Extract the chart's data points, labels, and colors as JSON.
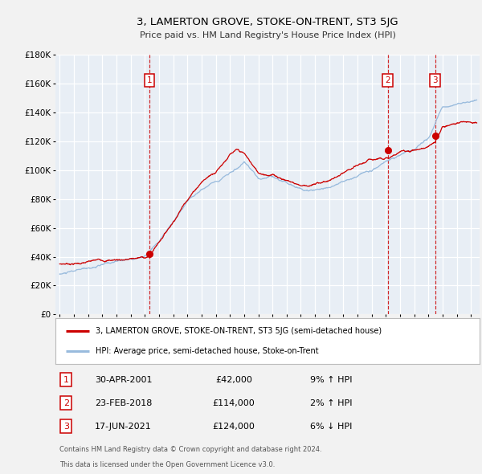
{
  "title": "3, LAMERTON GROVE, STOKE-ON-TRENT, ST3 5JG",
  "subtitle": "Price paid vs. HM Land Registry's House Price Index (HPI)",
  "ylim": [
    0,
    180000
  ],
  "yticks": [
    0,
    20000,
    40000,
    60000,
    80000,
    100000,
    120000,
    140000,
    160000,
    180000
  ],
  "ytick_labels": [
    "£0",
    "£20K",
    "£40K",
    "£60K",
    "£80K",
    "£100K",
    "£120K",
    "£140K",
    "£160K",
    "£180K"
  ],
  "xlim_start": 1994.7,
  "xlim_end": 2024.6,
  "plot_bg_color": "#e8eef5",
  "grid_color": "#ffffff",
  "red_line_color": "#cc0000",
  "blue_line_color": "#99bbdd",
  "dashed_vline_color": "#cc0000",
  "marker_color": "#cc0000",
  "sale_points": [
    {
      "year": 2001.33,
      "price": 42000,
      "label": "1"
    },
    {
      "year": 2018.12,
      "price": 114000,
      "label": "2"
    },
    {
      "year": 2021.46,
      "price": 124000,
      "label": "3"
    }
  ],
  "legend_entries": [
    "3, LAMERTON GROVE, STOKE-ON-TRENT, ST3 5JG (semi-detached house)",
    "HPI: Average price, semi-detached house, Stoke-on-Trent"
  ],
  "table_rows": [
    {
      "num": "1",
      "date": "30-APR-2001",
      "price": "£42,000",
      "change": "9% ↑ HPI"
    },
    {
      "num": "2",
      "date": "23-FEB-2018",
      "price": "£114,000",
      "change": "2% ↑ HPI"
    },
    {
      "num": "3",
      "date": "17-JUN-2021",
      "price": "£124,000",
      "change": "6% ↓ HPI"
    }
  ],
  "footnote1": "Contains HM Land Registry data © Crown copyright and database right 2024.",
  "footnote2": "This data is licensed under the Open Government Licence v3.0."
}
